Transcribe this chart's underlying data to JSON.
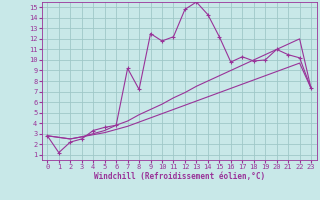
{
  "title": "",
  "xlabel": "Windchill (Refroidissement éolien,°C)",
  "background_color": "#c8e8e8",
  "grid_color": "#a0c8c8",
  "line_color": "#993399",
  "xlim": [
    -0.5,
    23.5
  ],
  "ylim": [
    0.5,
    15.5
  ],
  "xticks": [
    0,
    1,
    2,
    3,
    4,
    5,
    6,
    7,
    8,
    9,
    10,
    11,
    12,
    13,
    14,
    15,
    16,
    17,
    18,
    19,
    20,
    21,
    22,
    23
  ],
  "yticks": [
    1,
    2,
    3,
    4,
    5,
    6,
    7,
    8,
    9,
    10,
    11,
    12,
    13,
    14,
    15
  ],
  "curve1_x": [
    0,
    1,
    2,
    3,
    4,
    5,
    6,
    7,
    8,
    9,
    10,
    11,
    12,
    13,
    14,
    15,
    16,
    17,
    18,
    19,
    20,
    21,
    22,
    23
  ],
  "curve1_y": [
    2.8,
    1.2,
    2.2,
    2.5,
    3.3,
    3.6,
    3.8,
    9.2,
    7.2,
    12.5,
    11.8,
    12.2,
    14.8,
    15.5,
    14.3,
    12.2,
    9.8,
    10.3,
    9.9,
    10.0,
    11.0,
    10.5,
    10.2,
    7.3
  ],
  "curve2_x": [
    0,
    2,
    3,
    4,
    5,
    6,
    7,
    8,
    9,
    10,
    11,
    12,
    13,
    14,
    15,
    16,
    17,
    18,
    19,
    20,
    21,
    22,
    23
  ],
  "curve2_y": [
    2.8,
    2.5,
    2.7,
    3.0,
    3.3,
    3.8,
    4.2,
    4.8,
    5.3,
    5.8,
    6.4,
    6.9,
    7.5,
    8.0,
    8.5,
    9.0,
    9.5,
    10.0,
    10.5,
    11.0,
    11.5,
    12.0,
    7.3
  ],
  "curve3_x": [
    0,
    2,
    3,
    4,
    5,
    6,
    7,
    8,
    9,
    10,
    11,
    12,
    13,
    14,
    15,
    16,
    17,
    18,
    19,
    20,
    21,
    22,
    23
  ],
  "curve3_y": [
    2.8,
    2.5,
    2.7,
    2.9,
    3.1,
    3.4,
    3.7,
    4.1,
    4.5,
    4.9,
    5.3,
    5.7,
    6.1,
    6.5,
    6.9,
    7.3,
    7.7,
    8.1,
    8.5,
    8.9,
    9.3,
    9.7,
    7.3
  ],
  "xlabel_fontsize": 5.5,
  "tick_fontsize": 5,
  "lw": 0.8
}
